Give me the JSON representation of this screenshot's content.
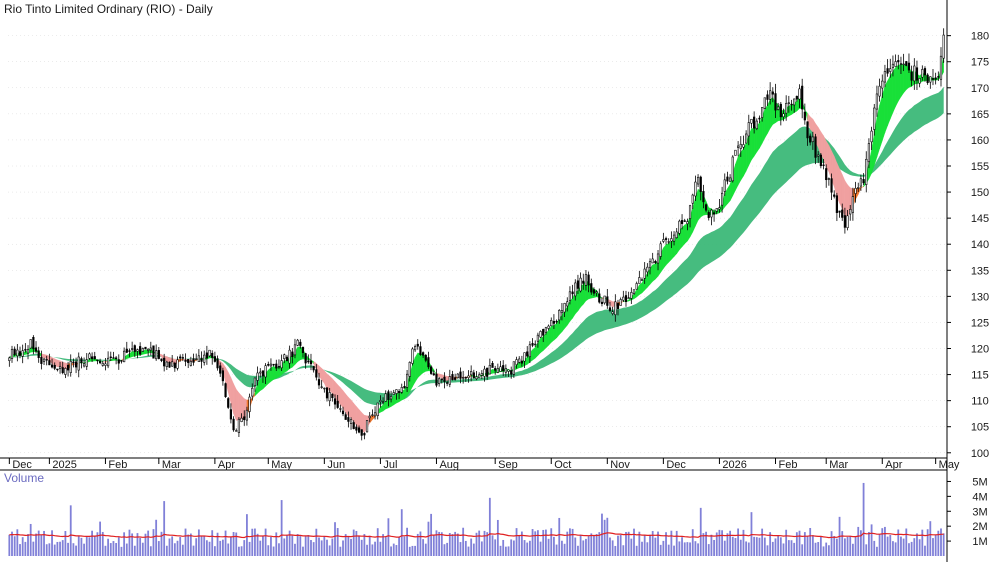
{
  "chart_data": {
    "type": "candlestick",
    "title": "Rio Tinto Limited Ordinary (RIO) - Daily",
    "volume_title": "Volume",
    "price_axis": {
      "ticks": [
        "180",
        "175",
        "170",
        "165",
        "160",
        "155",
        "150",
        "145",
        "140",
        "135",
        "130",
        "125",
        "120",
        "115",
        "110",
        "105",
        "100"
      ],
      "range": [
        99,
        183
      ]
    },
    "volume_axis": {
      "ticks": [
        "5M",
        "4M",
        "3M",
        "2M",
        "1M"
      ],
      "range": [
        0,
        5.5
      ]
    },
    "months": [
      "Dec",
      "2025",
      "Feb",
      "Mar",
      "Apr",
      "May",
      "Jun",
      "Jul",
      "Aug",
      "Sep",
      "Oct",
      "Nov",
      "Dec",
      "2026",
      "Feb",
      "Mar",
      "Apr",
      "May"
    ],
    "month_start_index": [
      0,
      15,
      36,
      56,
      77,
      97,
      118,
      139,
      160,
      182,
      203,
      224,
      245,
      266,
      287,
      306,
      327,
      347
    ],
    "close_anchors": [
      [
        0,
        118.5
      ],
      [
        8,
        121
      ],
      [
        12,
        118
      ],
      [
        20,
        116
      ],
      [
        28,
        118
      ],
      [
        40,
        118
      ],
      [
        50,
        120
      ],
      [
        60,
        117
      ],
      [
        70,
        118
      ],
      [
        76,
        119
      ],
      [
        80,
        113
      ],
      [
        84,
        104
      ],
      [
        88,
        107
      ],
      [
        92,
        114
      ],
      [
        96,
        116
      ],
      [
        104,
        118
      ],
      [
        108,
        121
      ],
      [
        112,
        117
      ],
      [
        118,
        112
      ],
      [
        124,
        108
      ],
      [
        128,
        106
      ],
      [
        132,
        103
      ],
      [
        136,
        108
      ],
      [
        142,
        111
      ],
      [
        148,
        113
      ],
      [
        152,
        121
      ],
      [
        156,
        118
      ],
      [
        160,
        113
      ],
      [
        166,
        114
      ],
      [
        174,
        115
      ],
      [
        182,
        116
      ],
      [
        188,
        116
      ],
      [
        194,
        119
      ],
      [
        200,
        123
      ],
      [
        206,
        127
      ],
      [
        212,
        132
      ],
      [
        216,
        134
      ],
      [
        220,
        130
      ],
      [
        226,
        128
      ],
      [
        234,
        131
      ],
      [
        240,
        136
      ],
      [
        246,
        141
      ],
      [
        254,
        145
      ],
      [
        258,
        153
      ],
      [
        262,
        145
      ],
      [
        266,
        148
      ],
      [
        272,
        157
      ],
      [
        278,
        163
      ],
      [
        282,
        166
      ],
      [
        284,
        169
      ],
      [
        290,
        165
      ],
      [
        296,
        169
      ],
      [
        298,
        163
      ],
      [
        302,
        158
      ],
      [
        306,
        153
      ],
      [
        310,
        147
      ],
      [
        313,
        143
      ],
      [
        316,
        149
      ],
      [
        320,
        153
      ],
      [
        324,
        166
      ],
      [
        328,
        172
      ],
      [
        334,
        175
      ],
      [
        338,
        173
      ],
      [
        342,
        172
      ],
      [
        346,
        171
      ],
      [
        348,
        173
      ],
      [
        350,
        181
      ]
    ],
    "ribbons": {
      "short_term": {
        "upper_color": "#18e038",
        "lower_color": "#f07830",
        "neutral_color": "#f0a0a0"
      },
      "long_term": {
        "color": "#3cb878"
      }
    },
    "volume_colors": {
      "bars": "#8080d8",
      "average": "#e02020"
    },
    "colors": {
      "candle": "#000000",
      "grid": "#d8d8d8",
      "axis": "#000000"
    }
  }
}
